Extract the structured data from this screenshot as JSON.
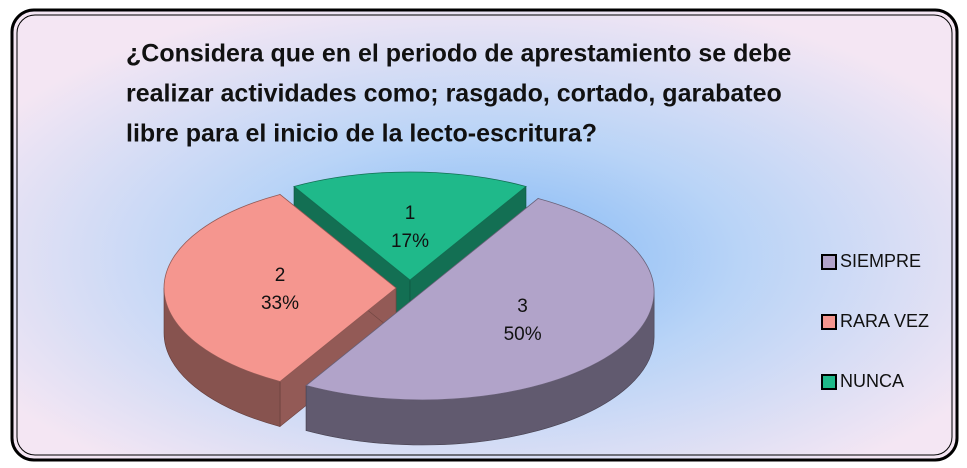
{
  "chart_data": {
    "type": "pie",
    "title": "¿Considera que en el periodo de aprestamiento se debe realizar actividades como;  rasgado, cortado, garabateo libre  para el inicio de la lecto-escritura?",
    "title_lines": [
      "¿Considera que en el periodo de aprestamiento se debe",
      "realizar actividades como;  rasgado, cortado, garabateo",
      "libre  para el inicio de la lecto-escritura?"
    ],
    "categories": [
      "SIEMPRE",
      "RARA VEZ",
      "NUNCA"
    ],
    "values": [
      3,
      2,
      1
    ],
    "percentages": [
      50,
      33,
      17
    ],
    "percentage_labels": [
      "50%",
      "33%",
      "17%"
    ],
    "colors": [
      "#b1a3c9",
      "#f5968f",
      "#1fb98a"
    ],
    "legend": "right"
  }
}
